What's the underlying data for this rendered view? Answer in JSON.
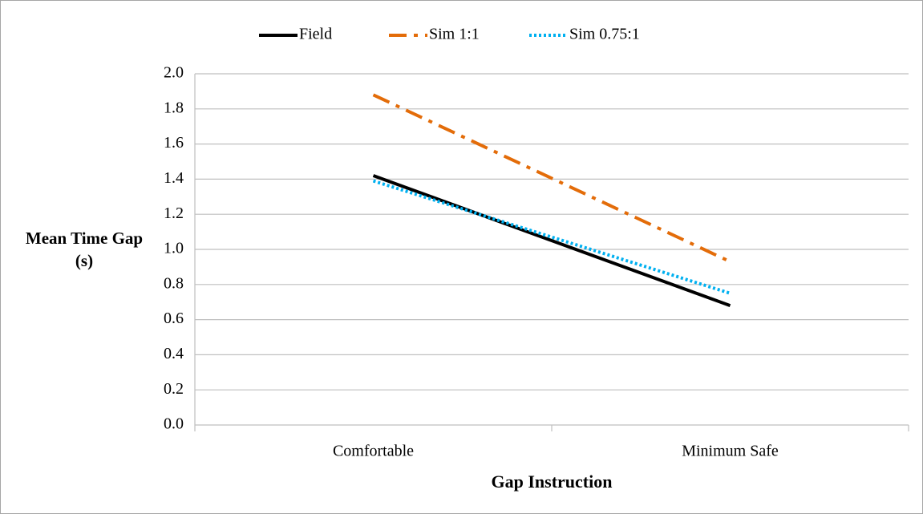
{
  "chart_data": {
    "type": "line",
    "x_label": "Gap Instruction",
    "y_label": "Mean Time Gap (s)",
    "categories": [
      "Comfortable",
      "Minimum Safe"
    ],
    "series": [
      {
        "name": "Field",
        "color": "#000000",
        "dash": "solid",
        "values": [
          1.42,
          0.68
        ]
      },
      {
        "name": "Sim 1:1",
        "color": "#e36c09",
        "dash": "dash-dot",
        "values": [
          1.88,
          0.93
        ]
      },
      {
        "name": "Sim 0.75:1",
        "color": "#00b0f0",
        "dash": "dotted",
        "values": [
          1.39,
          0.75
        ]
      }
    ],
    "ylim": [
      0,
      2
    ],
    "yticks": [
      {
        "value": 0,
        "label": "0.0"
      },
      0.2,
      0.4,
      0.6,
      0.8,
      {
        "value": 1,
        "label": "1.0"
      },
      1.2,
      1.4,
      1.6,
      1.8,
      {
        "value": 2,
        "label": "2.0"
      }
    ],
    "grid": true,
    "legend": "top"
  }
}
